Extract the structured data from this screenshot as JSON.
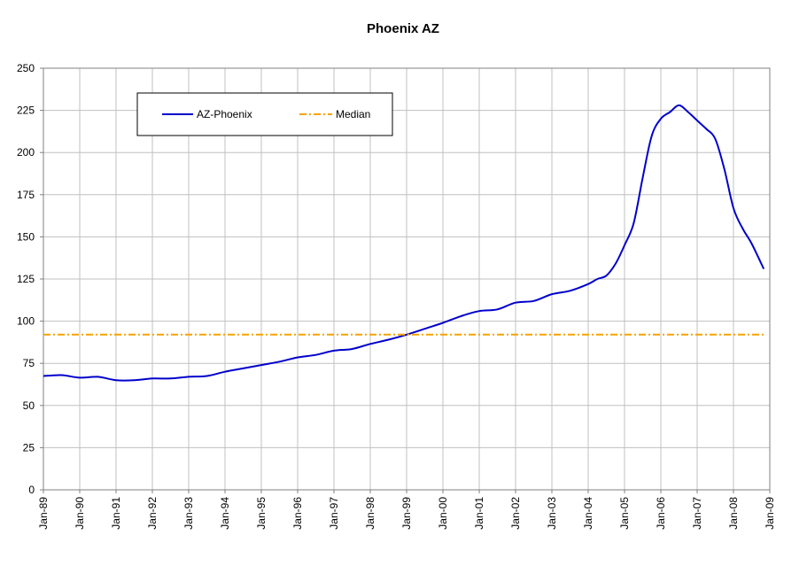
{
  "chart_data": {
    "type": "line",
    "title": "Phoenix AZ",
    "xlabel": "",
    "ylabel": "",
    "ylim": [
      0,
      250
    ],
    "yticks": [
      0,
      25,
      50,
      75,
      100,
      125,
      150,
      175,
      200,
      225,
      250
    ],
    "xlim": [
      "1989-01",
      "2009-01"
    ],
    "xticks": [
      "Jan-89",
      "Jan-90",
      "Jan-91",
      "Jan-92",
      "Jan-93",
      "Jan-94",
      "Jan-95",
      "Jan-96",
      "Jan-97",
      "Jan-98",
      "Jan-99",
      "Jan-00",
      "Jan-01",
      "Jan-02",
      "Jan-03",
      "Jan-04",
      "Jan-05",
      "Jan-06",
      "Jan-07",
      "Jan-08",
      "Jan-09"
    ],
    "grid": true,
    "legend_position": "top-left",
    "series": [
      {
        "name": "AZ-Phoenix",
        "color": "#0000cc",
        "style": "solid",
        "x": [
          "1989-01",
          "1989-07",
          "1990-01",
          "1990-07",
          "1991-01",
          "1991-07",
          "1992-01",
          "1992-07",
          "1993-01",
          "1993-07",
          "1994-01",
          "1994-07",
          "1995-01",
          "1995-07",
          "1996-01",
          "1996-07",
          "1997-01",
          "1997-07",
          "1998-01",
          "1998-07",
          "1999-01",
          "1999-07",
          "2000-01",
          "2000-07",
          "2001-01",
          "2001-07",
          "2002-01",
          "2002-07",
          "2003-01",
          "2003-07",
          "2004-01",
          "2004-04",
          "2004-07",
          "2004-10",
          "2005-01",
          "2005-04",
          "2005-07",
          "2005-10",
          "2006-01",
          "2006-04",
          "2006-07",
          "2006-10",
          "2007-01",
          "2007-04",
          "2007-07",
          "2007-10",
          "2008-01",
          "2008-04",
          "2008-07",
          "2008-11"
        ],
        "values": [
          67.5,
          68,
          66.5,
          67,
          65,
          65,
          66,
          66,
          67,
          67.5,
          70,
          72,
          74,
          76,
          78.5,
          80,
          82.5,
          83.5,
          86.5,
          89,
          92,
          95.5,
          99,
          103,
          106,
          107,
          111,
          112,
          116,
          118,
          122,
          125,
          127,
          134,
          145,
          158,
          185,
          210,
          220,
          224,
          228,
          224,
          219,
          214,
          208,
          190,
          167,
          155,
          146,
          131
        ]
      },
      {
        "name": "Median",
        "color": "#f5a300",
        "style": "dashdot",
        "x": [
          "1989-01",
          "2008-11"
        ],
        "values": [
          92,
          92
        ]
      }
    ]
  }
}
